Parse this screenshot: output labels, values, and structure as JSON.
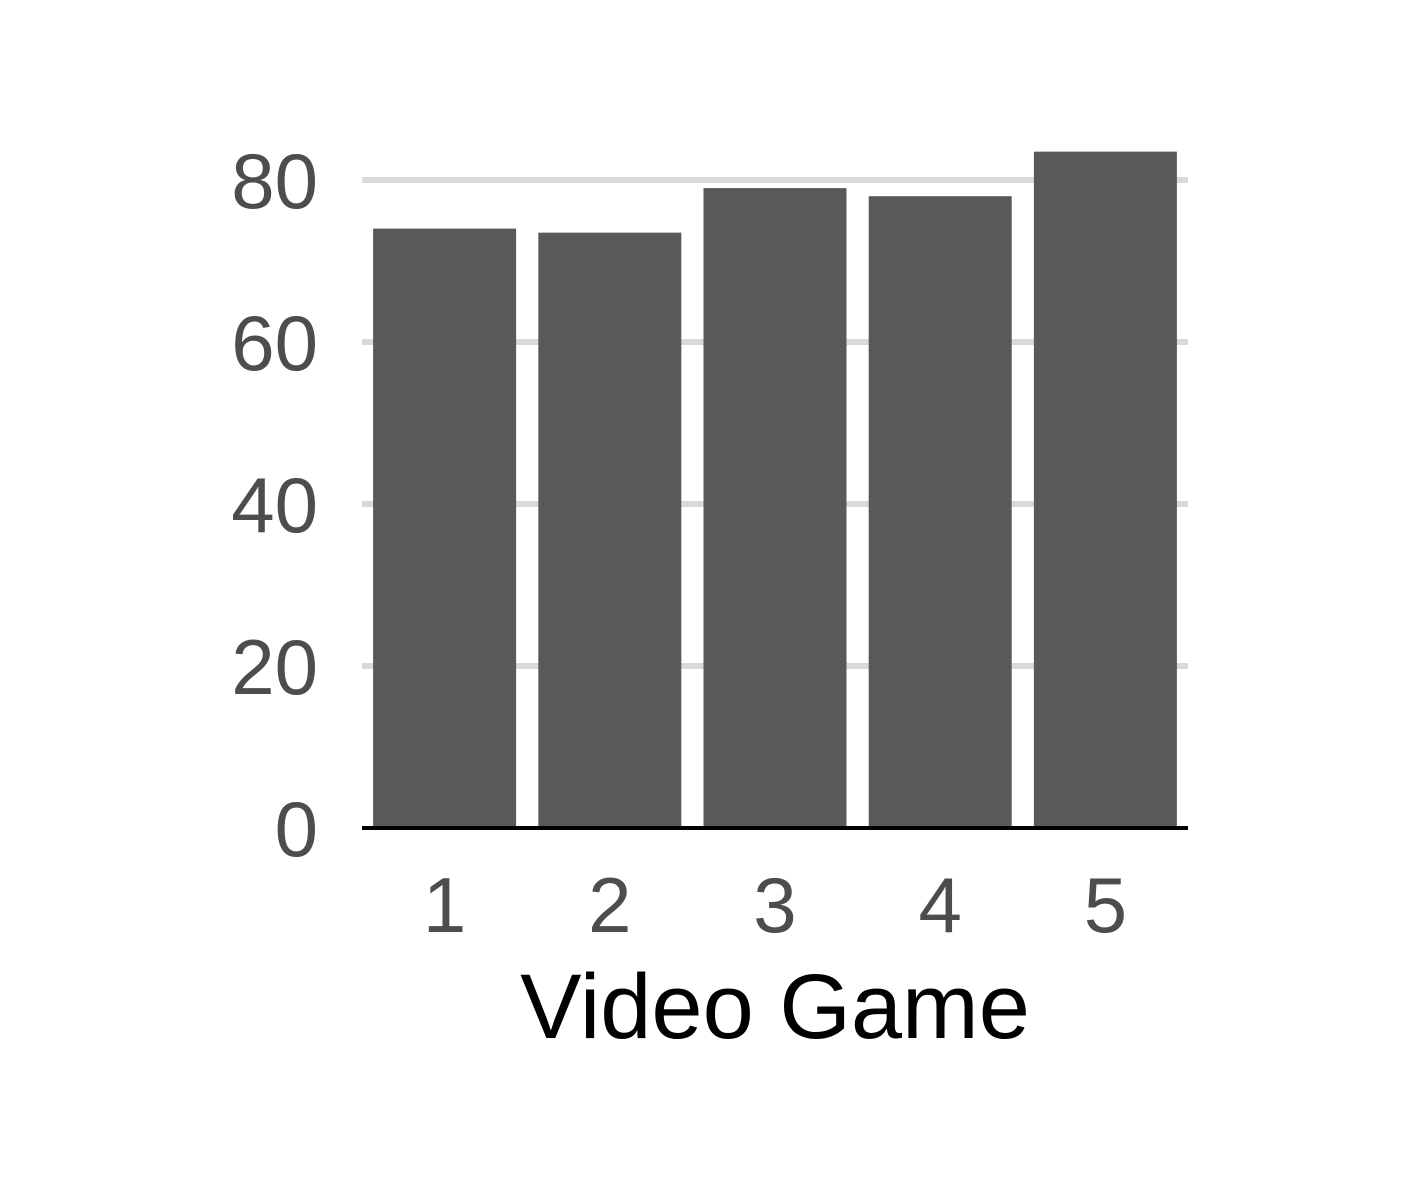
{
  "chart_data": {
    "type": "bar",
    "categories": [
      "1",
      "2",
      "3",
      "4",
      "5"
    ],
    "values": [
      74,
      73.5,
      79,
      78,
      83.5
    ],
    "title": "",
    "xlabel": "Video Game",
    "ylabel": "",
    "ylim": [
      0,
      80
    ],
    "yticks": [
      "0",
      "20",
      "40",
      "60",
      "80"
    ],
    "grid": "horizontal",
    "legend": "none",
    "colors": {
      "bar": "#595959",
      "grid": "#d9d9d9",
      "axis": "#000000",
      "tick_text": "#4d4d4d",
      "title_text": "#000000"
    }
  }
}
